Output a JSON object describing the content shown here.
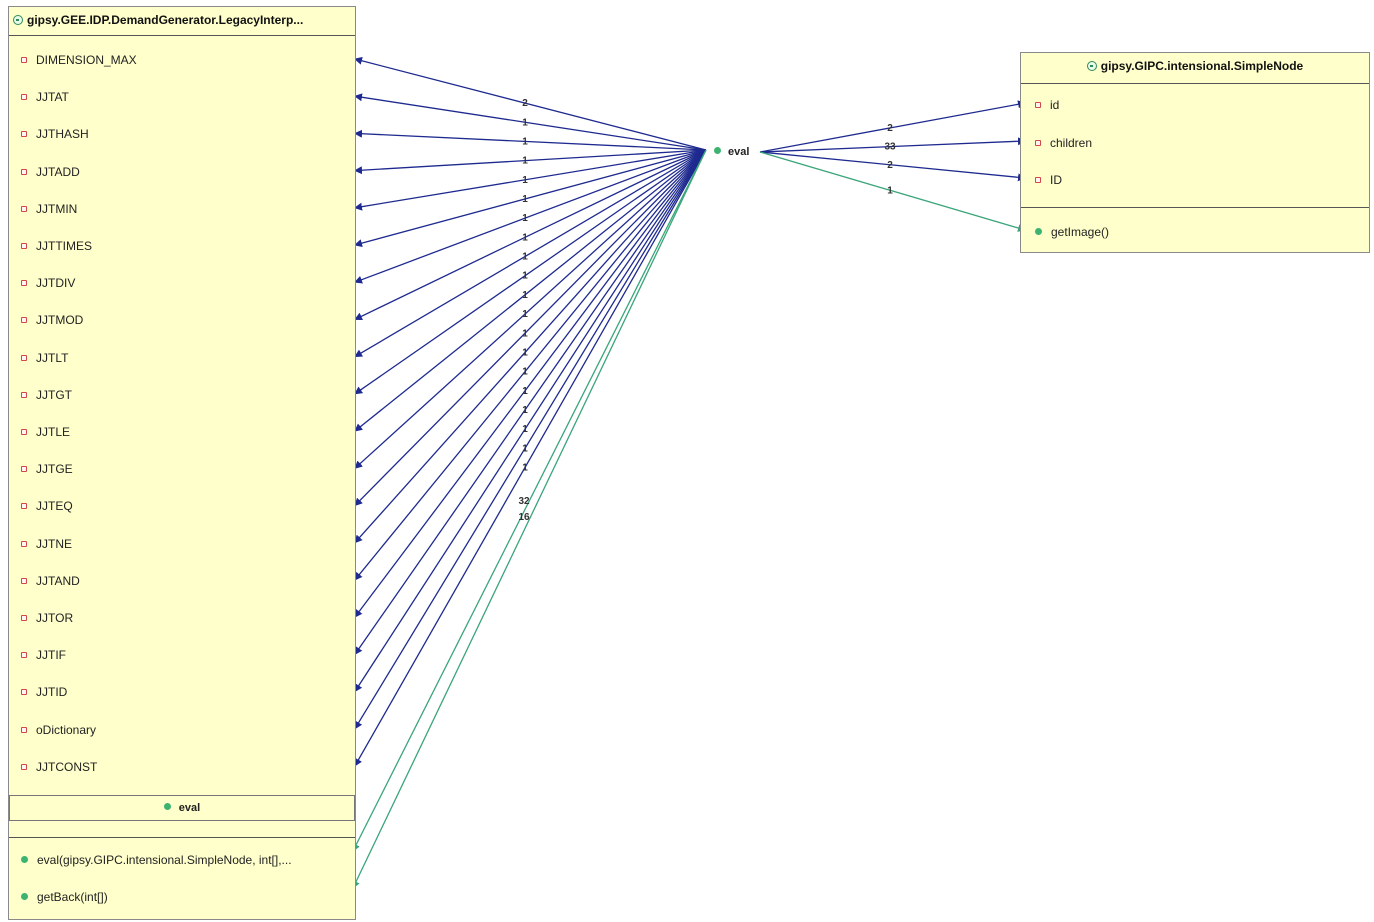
{
  "left_class": {
    "title": "gipsy.GEE.IDP.DemandGenerator.LegacyInterp...",
    "fields": [
      "DIMENSION_MAX",
      "JJTAT",
      "JJTHASH",
      "JJTADD",
      "JJTMIN",
      "JJTTIMES",
      "JJTDIV",
      "JJTMOD",
      "JJTLT",
      "JJTGT",
      "JJTLE",
      "JJTGE",
      "JJTEQ",
      "JJTNE",
      "JJTAND",
      "JJTOR",
      "JJTIF",
      "JJTID",
      "oDictionary",
      "JJTCONST"
    ],
    "inner_method": "eval",
    "methods": [
      "eval(gipsy.GIPC.intensional.SimpleNode, int[],...",
      "getBack(int[])"
    ]
  },
  "right_class": {
    "title": "gipsy.GIPC.intensional.SimpleNode",
    "fields": [
      "id",
      "children",
      "ID"
    ],
    "methods": [
      "getImage()"
    ]
  },
  "center_node": {
    "label": "eval"
  },
  "edge_labels_left": [
    "2",
    "1",
    "1",
    "1",
    "1",
    "1",
    "1",
    "1",
    "1",
    "1",
    "1",
    "1",
    "1",
    "1",
    "1",
    "1",
    "1",
    "1",
    "1",
    "1"
  ],
  "edge_labels_green": [
    "32",
    "16"
  ],
  "edge_labels_right": [
    "2",
    "33",
    "2",
    "1"
  ],
  "colors": {
    "field_edge": "#1e2a8f",
    "method_edge": "#3aa57a",
    "box_fill": "#ffffcc"
  }
}
